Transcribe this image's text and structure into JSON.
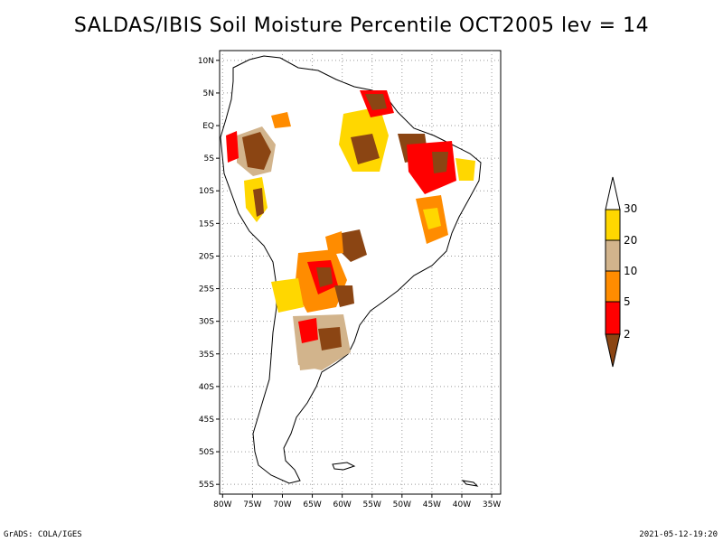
{
  "title": "SALDAS/IBIS Soil Moisture Percentile OCT2005 lev = 14",
  "footer": {
    "left": "GrADS: COLA/IGES",
    "right": "2021-05-12-19:20"
  },
  "axes": {
    "lon_labels": [
      "80W",
      "75W",
      "70W",
      "65W",
      "60W",
      "55W",
      "50W",
      "45W",
      "40W",
      "35W"
    ],
    "lat_labels": [
      "10N",
      "5N",
      "EQ",
      "5S",
      "10S",
      "15S",
      "20S",
      "25S",
      "30S",
      "35S",
      "40S",
      "45S",
      "50S",
      "55S"
    ]
  },
  "legend": {
    "labels": [
      "30",
      "20",
      "10",
      "5",
      "2"
    ],
    "colors": {
      "above30": "#ffffff",
      "c20_30": "#ffd700",
      "c10_20": "#d2b48c",
      "c5_10": "#ff8c00",
      "c2_5": "#ff0000",
      "below2": "#8b4513"
    }
  },
  "chart_data": {
    "type": "heatmap",
    "title": "SALDAS/IBIS Soil Moisture Percentile OCT2005 lev = 14",
    "variable": "soil moisture percentile",
    "level": 14,
    "period": "OCT2005",
    "lon_range": [
      -80,
      -35
    ],
    "lat_range": [
      -55,
      10
    ],
    "bins": [
      {
        "range": "< 2",
        "color": "#8b4513"
      },
      {
        "range": "2-5",
        "color": "#ff0000"
      },
      {
        "range": "5-10",
        "color": "#ff8c00"
      },
      {
        "range": "10-20",
        "color": "#d2b48c"
      },
      {
        "range": "20-30",
        "color": "#ffd700"
      },
      {
        "range": "> 30",
        "color": "#ffffff"
      }
    ]
  }
}
